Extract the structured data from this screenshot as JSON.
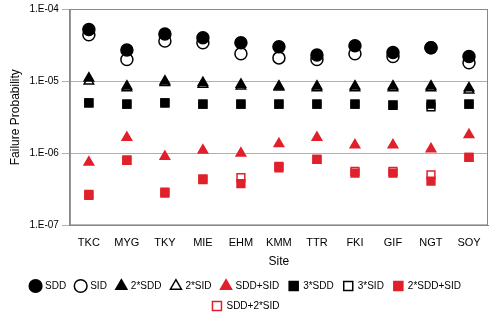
{
  "chart_data": {
    "type": "scatter",
    "x_label": "Site",
    "y_label": "Failure Probability",
    "categories": [
      "TKC",
      "MYG",
      "TKY",
      "MIE",
      "EHM",
      "KMM",
      "TTR",
      "FKI",
      "GIF",
      "NGT",
      "SOY"
    ],
    "log": "y",
    "grid": true,
    "legend": "bottom",
    "ylim": [
      1e-07,
      0.0001
    ],
    "yticks": [
      {
        "value": 1e-07,
        "label": "1.E-07"
      },
      {
        "value": 1e-06,
        "label": "1.E-06"
      },
      {
        "value": 1e-05,
        "label": "1.E-05"
      },
      {
        "value": 0.0001,
        "label": "1.E-04"
      }
    ],
    "series": [
      {
        "name": "SDD",
        "color": "#000000",
        "marker": "circle",
        "values": [
          5.2e-05,
          2.7e-05,
          4.5e-05,
          4e-05,
          3.4e-05,
          3e-05,
          2.3e-05,
          3.1e-05,
          2.5e-05,
          2.9e-05,
          2.2e-05
        ]
      },
      {
        "name": "SID",
        "color": "#000000",
        "marker": "open_circle",
        "values": [
          4.4e-05,
          2e-05,
          3.6e-05,
          3.4e-05,
          2.4e-05,
          2.1e-05,
          2e-05,
          2.4e-05,
          2.2e-05,
          2.9e-05,
          1.8e-05
        ]
      },
      {
        "name": "2*SDD",
        "color": "#000000",
        "marker": "triangle",
        "values": [
          1.1e-05,
          8.5e-06,
          1e-05,
          9.5e-06,
          9e-06,
          8.5e-06,
          8.5e-06,
          8.5e-06,
          8.5e-06,
          8.5e-06,
          8e-06
        ]
      },
      {
        "name": "2*SID",
        "color": "#000000",
        "marker": "open_triangle",
        "values": [
          1e-05,
          8e-06,
          9.5e-06,
          9e-06,
          8.5e-06,
          8.2e-06,
          8e-06,
          8e-06,
          8e-06,
          8e-06,
          7.5e-06
        ]
      },
      {
        "name": "SDD+SID",
        "color": "#e0202a",
        "marker": "triangle",
        "values": [
          7.5e-07,
          1.65e-06,
          9e-07,
          1.1e-06,
          1e-06,
          1.35e-06,
          1.65e-06,
          1.3e-06,
          1.3e-06,
          1.15e-06,
          1.8e-06
        ]
      },
      {
        "name": "3*SDD",
        "color": "#000000",
        "marker": "square",
        "values": [
          5e-06,
          4.8e-06,
          5e-06,
          4.8e-06,
          4.8e-06,
          4.8e-06,
          4.8e-06,
          4.8e-06,
          4.6e-06,
          4.8e-06,
          4.8e-06
        ]
      },
      {
        "name": "3*SID",
        "color": "#000000",
        "marker": "open_square",
        "values": [
          5e-06,
          4.8e-06,
          5e-06,
          4.8e-06,
          4.8e-06,
          4.8e-06,
          4.8e-06,
          4.8e-06,
          4.7e-06,
          4.4e-06,
          4.8e-06
        ]
      },
      {
        "name": "2*SDD+SID",
        "color": "#e0202a",
        "marker": "square",
        "values": [
          2.6e-07,
          8e-07,
          2.8e-07,
          4.3e-07,
          3.8e-07,
          6.3e-07,
          8.2e-07,
          5.3e-07,
          5.3e-07,
          4.1e-07,
          8.8e-07
        ]
      },
      {
        "name": "SDD+2*SID",
        "color": "#e0202a",
        "marker": "open_square",
        "values": [
          2.7e-07,
          8e-07,
          2.9e-07,
          4.4e-07,
          4.6e-07,
          6.6e-07,
          8.2e-07,
          5.6e-07,
          5.6e-07,
          5e-07,
          8.8e-07
        ]
      }
    ]
  }
}
